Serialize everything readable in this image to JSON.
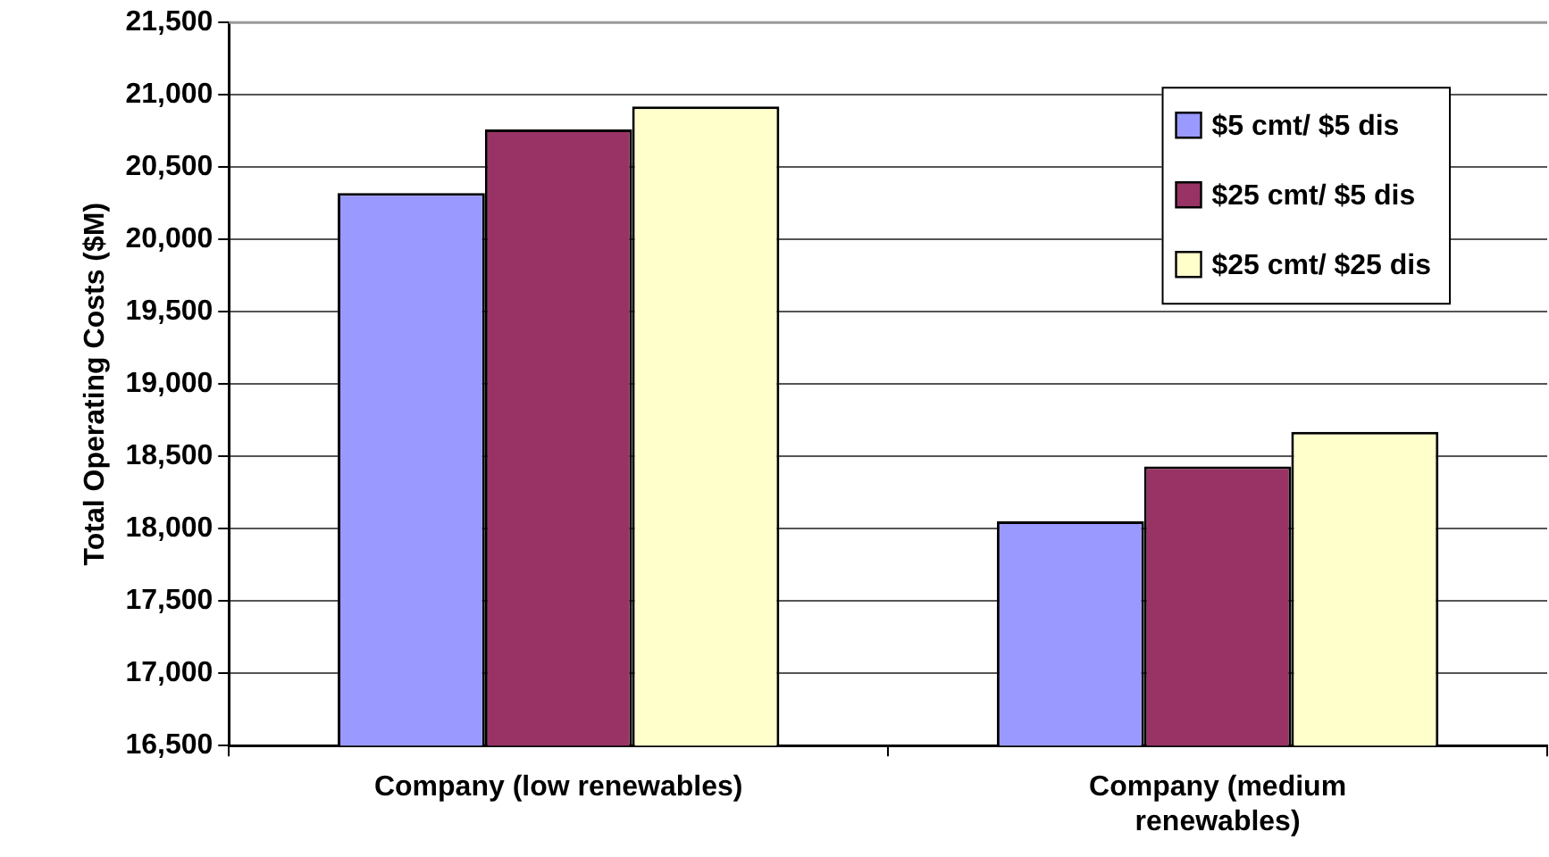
{
  "chart_data": {
    "type": "bar",
    "ylabel": "Total Operating Costs ($M)",
    "categories": [
      "Company (low renewables)",
      "Company (medium renewables)"
    ],
    "series": [
      {
        "name": "$5 cmt/ $5 dis",
        "color": "#9999ff",
        "values": [
          20320,
          18050
        ]
      },
      {
        "name": "$25 cmt/ $5 dis",
        "color": "#993366",
        "values": [
          20760,
          18430
        ]
      },
      {
        "name": "$25 cmt/ $25 dis",
        "color": "#ffffcc",
        "values": [
          20920,
          18670
        ]
      }
    ],
    "ylim": [
      16500,
      21500
    ],
    "yticks": [
      {
        "value": 16500,
        "label": "16,500"
      },
      {
        "value": 17000,
        "label": "17,000"
      },
      {
        "value": 17500,
        "label": "17,500"
      },
      {
        "value": 18000,
        "label": "18,000"
      },
      {
        "value": 18500,
        "label": "18,500"
      },
      {
        "value": 19000,
        "label": "19,000"
      },
      {
        "value": 19500,
        "label": "19,500"
      },
      {
        "value": 20000,
        "label": "20,000"
      },
      {
        "value": 20500,
        "label": "20,500"
      },
      {
        "value": 21000,
        "label": "21,000"
      },
      {
        "value": 21500,
        "label": "21,500"
      }
    ],
    "grid": "y",
    "legend": "top right"
  }
}
